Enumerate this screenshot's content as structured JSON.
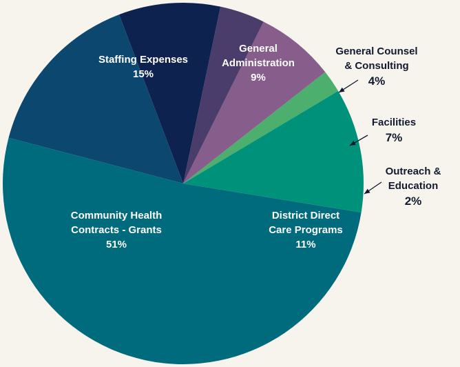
{
  "chart_data": {
    "type": "pie",
    "start_angle_deg": -30.8,
    "direction": "counterclockwise",
    "slices": [
      {
        "name": "Outreach & Education",
        "lines": [
          "Outreach &",
          "Education"
        ],
        "value": 2,
        "pct_label": "2%",
        "color": "#4caf6e",
        "label_placement": "outside"
      },
      {
        "name": "Facilities",
        "lines": [
          "Facilities"
        ],
        "value": 7,
        "pct_label": "7%",
        "color": "#875d8c",
        "label_placement": "outside"
      },
      {
        "name": "General Counsel & Consulting",
        "lines": [
          "General Counsel",
          "& Consulting"
        ],
        "value": 4,
        "pct_label": "4%",
        "color": "#4a3d6c",
        "label_placement": "outside"
      },
      {
        "name": "General Administration",
        "lines": [
          "General",
          "Administration"
        ],
        "value": 9,
        "pct_label": "9%",
        "color": "#0e2250",
        "label_placement": "inside"
      },
      {
        "name": "Staffing Expenses",
        "lines": [
          "Staffing Expenses"
        ],
        "value": 15,
        "pct_label": "15%",
        "color": "#0c4770",
        "label_placement": "inside"
      },
      {
        "name": "Community Health Contracts - Grants",
        "lines": [
          "Community Health",
          "Contracts - Grants"
        ],
        "value": 51,
        "pct_label": "51%",
        "color": "#006b7d",
        "label_placement": "inside"
      },
      {
        "name": "District Direct Care Programs",
        "lines": [
          "District Direct",
          "Care Programs"
        ],
        "value": 11,
        "pct_label": "11%",
        "color": "#00917a",
        "label_placement": "inside"
      }
    ]
  }
}
